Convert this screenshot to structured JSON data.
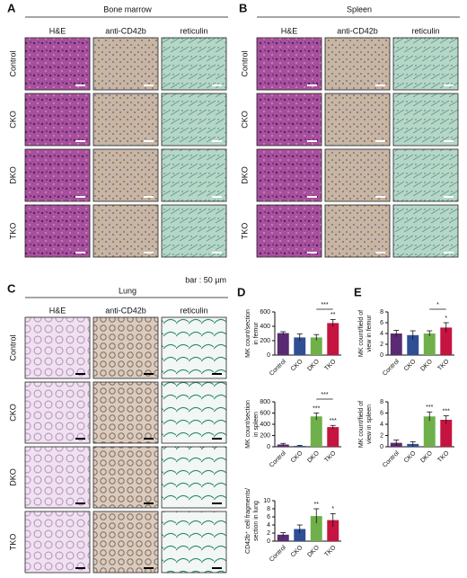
{
  "panels": [
    {
      "label": "A",
      "title": "Bone marrow",
      "columns": [
        "H&E",
        "anti-CD42b",
        "reticulin"
      ],
      "rows": [
        "Control",
        "CKO",
        "DKO",
        "TKO"
      ],
      "note": "bar : 50 µm"
    },
    {
      "label": "B",
      "title": "Spleen",
      "columns": [
        "H&E",
        "anti-CD42b",
        "reticulin"
      ],
      "rows": [
        "Control",
        "CKO",
        "DKO",
        "TKO"
      ]
    },
    {
      "label": "C",
      "title": "Lung",
      "columns": [
        "H&E",
        "anti-CD42b",
        "reticulin"
      ],
      "rows": [
        "Control",
        "CKO",
        "DKO",
        "TKO"
      ]
    },
    {
      "label": "D"
    },
    {
      "label": "E"
    }
  ],
  "chart_data": [
    {
      "type": "bar",
      "ylabel": [
        "MK count/section",
        "in femur"
      ],
      "categories": [
        "Control",
        "CKO",
        "DKO",
        "TKO"
      ],
      "values": [
        305,
        245,
        245,
        445
      ],
      "errors": [
        20,
        50,
        40,
        50
      ],
      "colors": [
        "#5a2a72",
        "#2f4f95",
        "#6fb04a",
        "#c4143f"
      ],
      "ylim": [
        0,
        600
      ],
      "yticks": [
        0,
        200,
        400,
        600
      ],
      "stars": [
        null,
        null,
        null,
        "**"
      ],
      "bracket": {
        "label": "***",
        "categories": [
          "DKO",
          "TKO"
        ]
      }
    },
    {
      "type": "bar",
      "ylabel": [
        "MK count/section",
        "in spleen"
      ],
      "categories": [
        "Control",
        "CKO",
        "DKO",
        "TKO"
      ],
      "values": [
        40,
        15,
        540,
        350
      ],
      "errors": [
        20,
        10,
        60,
        30
      ],
      "colors": [
        "#5a2a72",
        "#2f4f95",
        "#6fb04a",
        "#c4143f"
      ],
      "ylim": [
        0,
        800
      ],
      "yticks": [
        0,
        200,
        400,
        600,
        800
      ],
      "stars": [
        null,
        null,
        "***",
        "***"
      ],
      "bracket": {
        "label": "***",
        "categories": [
          "DKO",
          "TKO"
        ]
      }
    },
    {
      "type": "bar",
      "ylabel": [
        "CD42b⁺ cell fragments/",
        "section in lung"
      ],
      "categories": [
        "Control",
        "CKO",
        "DKO",
        "TKO"
      ],
      "values": [
        1.6,
        3,
        6.2,
        5.2
      ],
      "errors": [
        0.5,
        1,
        1.8,
        1.6
      ],
      "colors": [
        "#5a2a72",
        "#2f4f95",
        "#6fb04a",
        "#c4143f"
      ],
      "ylim": [
        0,
        10
      ],
      "yticks": [
        0,
        2,
        4,
        6,
        8,
        10
      ],
      "stars": [
        null,
        null,
        "**",
        "*"
      ]
    },
    {
      "type": "bar",
      "ylabel": [
        "MK count/field of",
        "view in femur"
      ],
      "categories": [
        "Control",
        "CKO",
        "DKO",
        "TKO"
      ],
      "values": [
        4,
        3.7,
        4,
        5.1
      ],
      "errors": [
        0.6,
        0.8,
        0.5,
        0.9
      ],
      "colors": [
        "#5a2a72",
        "#2f4f95",
        "#6fb04a",
        "#c4143f"
      ],
      "ylim": [
        0,
        8
      ],
      "yticks": [
        0,
        2,
        4,
        6,
        8
      ],
      "stars": [
        null,
        null,
        null,
        "*"
      ],
      "bracket": {
        "label": "*",
        "categories": [
          "DKO",
          "TKO"
        ]
      }
    },
    {
      "type": "bar",
      "ylabel": [
        "MK count/field of",
        "view in spleen"
      ],
      "categories": [
        "Control",
        "CKO",
        "DKO",
        "TKO"
      ],
      "values": [
        0.7,
        0.5,
        5.4,
        4.8
      ],
      "errors": [
        0.5,
        0.4,
        0.8,
        0.7
      ],
      "colors": [
        "#5a2a72",
        "#2f4f95",
        "#6fb04a",
        "#c4143f"
      ],
      "ylim": [
        0,
        8
      ],
      "yticks": [
        0,
        2,
        4,
        6,
        8
      ],
      "stars": [
        null,
        null,
        "***",
        "***"
      ]
    }
  ]
}
